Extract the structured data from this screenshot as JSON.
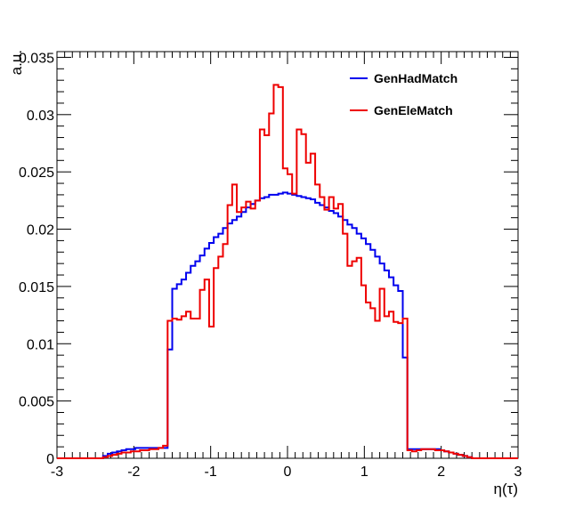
{
  "chart_data": {
    "type": "line",
    "title": "",
    "xlabel": "η(τ)",
    "ylabel": "a.u.",
    "xlim": [
      -3,
      3
    ],
    "ylim": [
      0,
      0.0355
    ],
    "grid": false,
    "legend_position": "top-right",
    "x_ticks": [
      -3,
      -2,
      -1,
      0,
      1,
      2,
      3
    ],
    "x_tick_labels": [
      "-3",
      "-2",
      "-1",
      "0",
      "1",
      "2",
      "3"
    ],
    "y_ticks": [
      0,
      0.005,
      0.01,
      0.015,
      0.02,
      0.025,
      0.03,
      0.035
    ],
    "y_tick_labels": [
      "0",
      "0.005",
      "0.01",
      "0.015",
      "0.02",
      "0.025",
      "0.03",
      "0.035"
    ],
    "x_edges": [
      -3.0,
      -2.94,
      -2.88,
      -2.82,
      -2.76,
      -2.7,
      -2.64,
      -2.58,
      -2.52,
      -2.46,
      -2.4,
      -2.34,
      -2.28,
      -2.22,
      -2.16,
      -2.1,
      -2.04,
      -1.98,
      -1.92,
      -1.86,
      -1.8,
      -1.74,
      -1.68,
      -1.62,
      -1.56,
      -1.5,
      -1.44,
      -1.38,
      -1.32,
      -1.26,
      -1.2,
      -1.14,
      -1.08,
      -1.02,
      -0.96,
      -0.9,
      -0.84,
      -0.78,
      -0.72,
      -0.66,
      -0.6,
      -0.54,
      -0.48,
      -0.42,
      -0.36,
      -0.3,
      -0.24,
      -0.18,
      -0.12,
      -0.06,
      0.0,
      0.06,
      0.12,
      0.18,
      0.24,
      0.3,
      0.36,
      0.42,
      0.48,
      0.54,
      0.6,
      0.66,
      0.72,
      0.78,
      0.84,
      0.9,
      0.96,
      1.02,
      1.08,
      1.14,
      1.2,
      1.26,
      1.32,
      1.38,
      1.44,
      1.5,
      1.56,
      1.62,
      1.68,
      1.74,
      1.8,
      1.86,
      1.92,
      1.98,
      2.04,
      2.1,
      2.16,
      2.22,
      2.28,
      2.34,
      2.4,
      2.46,
      2.52,
      2.58,
      2.64,
      2.7,
      2.76,
      2.82,
      2.88,
      2.94,
      3.0
    ],
    "series": [
      {
        "name": "GenHadMatch",
        "color": "#0000ee",
        "values": [
          0,
          0,
          0,
          0,
          0,
          0,
          0,
          0,
          0,
          0,
          0.0002,
          0.0004,
          0.0005,
          0.0006,
          0.0007,
          0.0008,
          0.0008,
          0.0009,
          0.0009,
          0.0009,
          0.0009,
          0.0009,
          0.0009,
          0.0009,
          0.0095,
          0.0148,
          0.0152,
          0.0156,
          0.0162,
          0.0168,
          0.0172,
          0.0177,
          0.0183,
          0.0188,
          0.0193,
          0.0196,
          0.0201,
          0.0205,
          0.0208,
          0.0211,
          0.0215,
          0.0219,
          0.0222,
          0.0225,
          0.0227,
          0.0228,
          0.023,
          0.023,
          0.0231,
          0.0232,
          0.0231,
          0.023,
          0.0229,
          0.0228,
          0.0227,
          0.0226,
          0.0223,
          0.0221,
          0.0219,
          0.0216,
          0.0214,
          0.0211,
          0.0208,
          0.0204,
          0.0201,
          0.0196,
          0.0192,
          0.0187,
          0.0182,
          0.0176,
          0.017,
          0.0164,
          0.0158,
          0.0151,
          0.0146,
          0.0088,
          0.0008,
          0.0008,
          0.0008,
          0.0008,
          0.0008,
          0.0008,
          0.0008,
          0.0007,
          0.0006,
          0.0005,
          0.0004,
          0.0003,
          0.0002,
          0.0001,
          0,
          0,
          0,
          0,
          0,
          0,
          0,
          0,
          0,
          0
        ]
      },
      {
        "name": "GenEleMatch",
        "color": "#ee0000",
        "values": [
          0,
          0,
          0,
          0,
          0,
          0,
          0,
          0,
          0,
          0,
          0.0001,
          0.0002,
          0.0003,
          0.0004,
          0.0005,
          0.0005,
          0.0006,
          0.0006,
          0.0007,
          0.0007,
          0.0008,
          0.0008,
          0.0009,
          0.0011,
          0.012,
          0.0122,
          0.0121,
          0.0124,
          0.0128,
          0.0122,
          0.0122,
          0.0147,
          0.0156,
          0.0115,
          0.0166,
          0.0176,
          0.0187,
          0.0221,
          0.0239,
          0.0215,
          0.0219,
          0.0224,
          0.0218,
          0.0225,
          0.0287,
          0.0282,
          0.0301,
          0.0326,
          0.0324,
          0.0253,
          0.0248,
          0.0231,
          0.0287,
          0.0283,
          0.0258,
          0.0266,
          0.0239,
          0.0228,
          0.0217,
          0.0228,
          0.0218,
          0.0222,
          0.0196,
          0.0168,
          0.0172,
          0.0175,
          0.0151,
          0.0136,
          0.0131,
          0.012,
          0.0148,
          0.0124,
          0.0128,
          0.0119,
          0.0118,
          0.0122,
          0.0007,
          0.0006,
          0.0007,
          0.0008,
          0.0008,
          0.0008,
          0.0007,
          0.0007,
          0.0006,
          0.0005,
          0.0004,
          0.0003,
          0.0002,
          0.0001,
          0,
          0,
          0,
          0,
          0,
          0,
          0,
          0,
          0,
          0
        ]
      }
    ]
  }
}
